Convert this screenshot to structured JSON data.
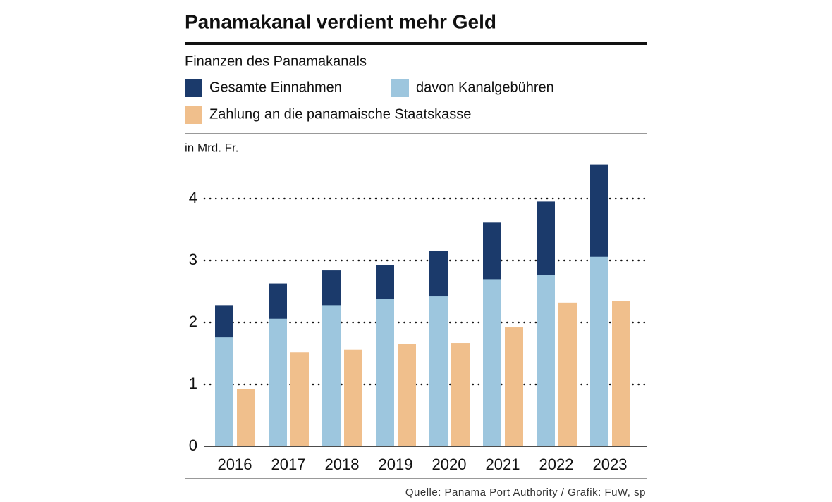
{
  "chart_data": {
    "type": "bar",
    "title": "Panamakanal verdient mehr Geld",
    "subtitle": "Finanzen des Panamakanals",
    "y_label": "in Mrd. Fr.",
    "source": "Quelle: Panama Port Authority  / Grafik: FuW, sp",
    "categories": [
      "2016",
      "2017",
      "2018",
      "2019",
      "2020",
      "2021",
      "2022",
      "2023"
    ],
    "series": [
      {
        "name": "Gesamte Einnahmen",
        "color": "#1b3a6b",
        "values": [
          2.28,
          2.63,
          2.84,
          2.93,
          3.15,
          3.61,
          3.95,
          4.55
        ]
      },
      {
        "name": "davon Kanalgebühren",
        "color": "#9dc6de",
        "values": [
          1.76,
          2.06,
          2.28,
          2.38,
          2.42,
          2.7,
          2.77,
          3.06
        ]
      },
      {
        "name": "Zahlung an die panamaische Staatskasse",
        "color": "#f0bf8c",
        "values": [
          0.93,
          1.52,
          1.56,
          1.65,
          1.67,
          1.92,
          2.32,
          2.35
        ]
      }
    ],
    "ylim": [
      0,
      4.6
    ],
    "yticks": [
      0,
      1,
      2,
      3,
      4
    ],
    "grid": true
  }
}
